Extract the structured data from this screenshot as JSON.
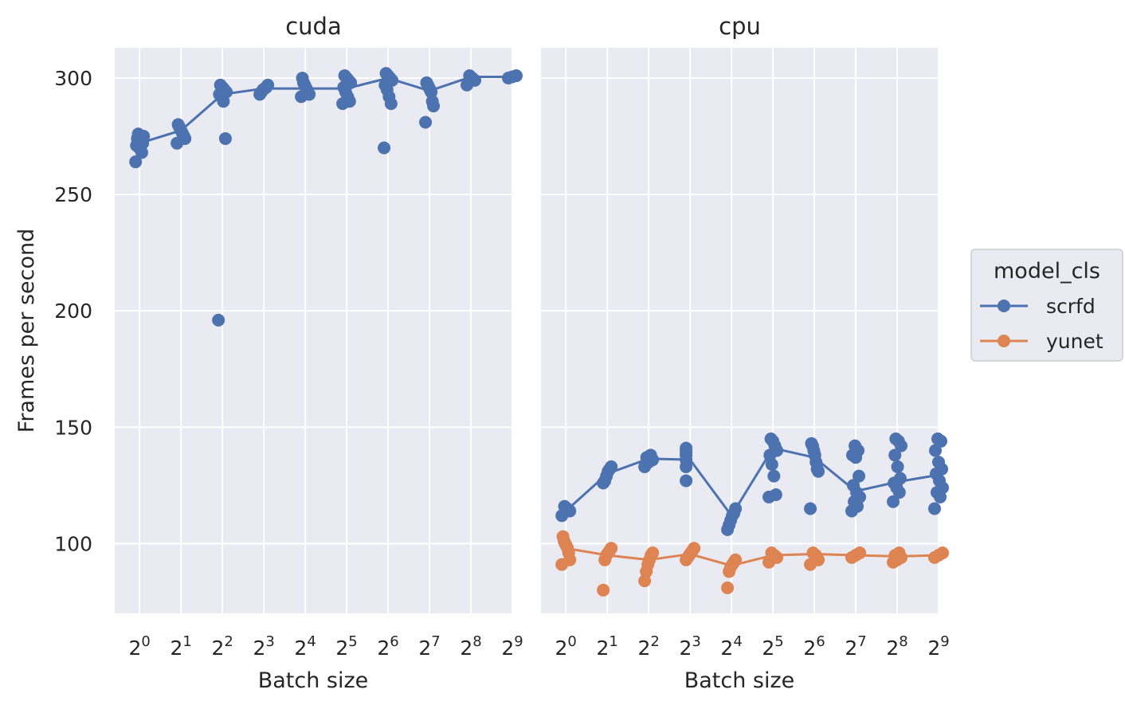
{
  "chart_data": {
    "type": "scatter",
    "facets": [
      "cuda",
      "cpu"
    ],
    "xlabel": "Batch size",
    "ylabel": "Frames per second",
    "x_scale": "log2",
    "x_ticks": [
      {
        "base": "2",
        "exp": "0"
      },
      {
        "base": "2",
        "exp": "1"
      },
      {
        "base": "2",
        "exp": "2"
      },
      {
        "base": "2",
        "exp": "3"
      },
      {
        "base": "2",
        "exp": "4"
      },
      {
        "base": "2",
        "exp": "5"
      },
      {
        "base": "2",
        "exp": "6"
      },
      {
        "base": "2",
        "exp": "7"
      },
      {
        "base": "2",
        "exp": "8"
      },
      {
        "base": "2",
        "exp": "9"
      }
    ],
    "x": [
      1,
      2,
      4,
      8,
      16,
      32,
      64,
      128,
      256,
      512
    ],
    "y_ticks": [
      "100",
      "150",
      "200",
      "250",
      "300"
    ],
    "ylim": [
      70,
      313
    ],
    "grid": true,
    "legend": {
      "title": "model_cls",
      "position": "right",
      "entries": [
        {
          "name": "scrfd",
          "color": "#4c72b0"
        },
        {
          "name": "yunet",
          "color": "#dd8452"
        }
      ]
    },
    "series": [
      {
        "facet": "cuda",
        "name": "scrfd",
        "color": "#4c72b0",
        "mean": [
          272,
          277.5,
          293,
          295.5,
          295.5,
          295.5,
          300,
          294.5,
          300.5,
          300.5
        ],
        "points": [
          [
            264,
            268,
            270,
            271,
            272,
            273,
            274,
            275,
            275,
            276
          ],
          [
            272,
            274,
            275,
            276,
            277,
            278,
            279,
            280
          ],
          [
            196,
            274,
            290,
            292,
            293,
            294,
            295,
            296,
            297
          ],
          [
            293,
            294,
            295,
            295.5,
            296,
            297
          ],
          [
            292,
            293,
            294,
            295,
            296,
            297,
            298,
            300
          ],
          [
            289,
            290,
            292,
            294,
            296,
            298,
            299,
            300,
            301
          ],
          [
            270,
            289,
            292,
            295,
            297,
            299,
            300,
            301,
            302
          ],
          [
            281,
            288,
            290,
            294,
            295,
            296,
            297,
            298
          ],
          [
            297,
            299,
            300,
            301
          ],
          [
            300,
            300.5,
            301
          ]
        ]
      },
      {
        "facet": "cpu",
        "name": "scrfd",
        "color": "#4c72b0",
        "mean": [
          114,
          130,
          136.5,
          136,
          112,
          141,
          137,
          122.5,
          126.5,
          129.5
        ],
        "points": [
          [
            112,
            114,
            115,
            116
          ],
          [
            126,
            127,
            129,
            131,
            132,
            133
          ],
          [
            133,
            135,
            136,
            137,
            138
          ],
          [
            127,
            133,
            136,
            138,
            139,
            140,
            141
          ],
          [
            106,
            108,
            110,
            112,
            113,
            115
          ],
          [
            120,
            121,
            129,
            134,
            138,
            140,
            142,
            144,
            145
          ],
          [
            115,
            131,
            132,
            135,
            138,
            140,
            142,
            143
          ],
          [
            114,
            116,
            118,
            120,
            122,
            125,
            129,
            137,
            138,
            140,
            142
          ],
          [
            118,
            122,
            124,
            126,
            128,
            133,
            138,
            142,
            144,
            145
          ],
          [
            115,
            120,
            122,
            124,
            127,
            130,
            132,
            135,
            140,
            144,
            145
          ]
        ]
      },
      {
        "facet": "cpu",
        "name": "yunet",
        "color": "#dd8452",
        "mean": [
          98,
          95,
          93,
          95.5,
          90.5,
          95,
          95.5,
          95,
          94.5,
          95
        ],
        "points": [
          [
            91,
            93,
            96,
            98,
            99,
            100,
            101,
            103
          ],
          [
            80,
            93,
            95,
            96,
            97,
            98
          ],
          [
            84,
            88,
            91,
            93,
            95,
            96
          ],
          [
            93,
            94,
            95,
            96,
            97,
            98
          ],
          [
            81,
            88,
            90,
            91,
            92,
            93
          ],
          [
            92,
            94,
            95,
            96
          ],
          [
            91,
            93,
            95,
            96
          ],
          [
            94,
            95,
            96
          ],
          [
            92,
            93,
            94,
            95,
            96
          ],
          [
            94,
            95,
            96
          ]
        ]
      }
    ]
  }
}
